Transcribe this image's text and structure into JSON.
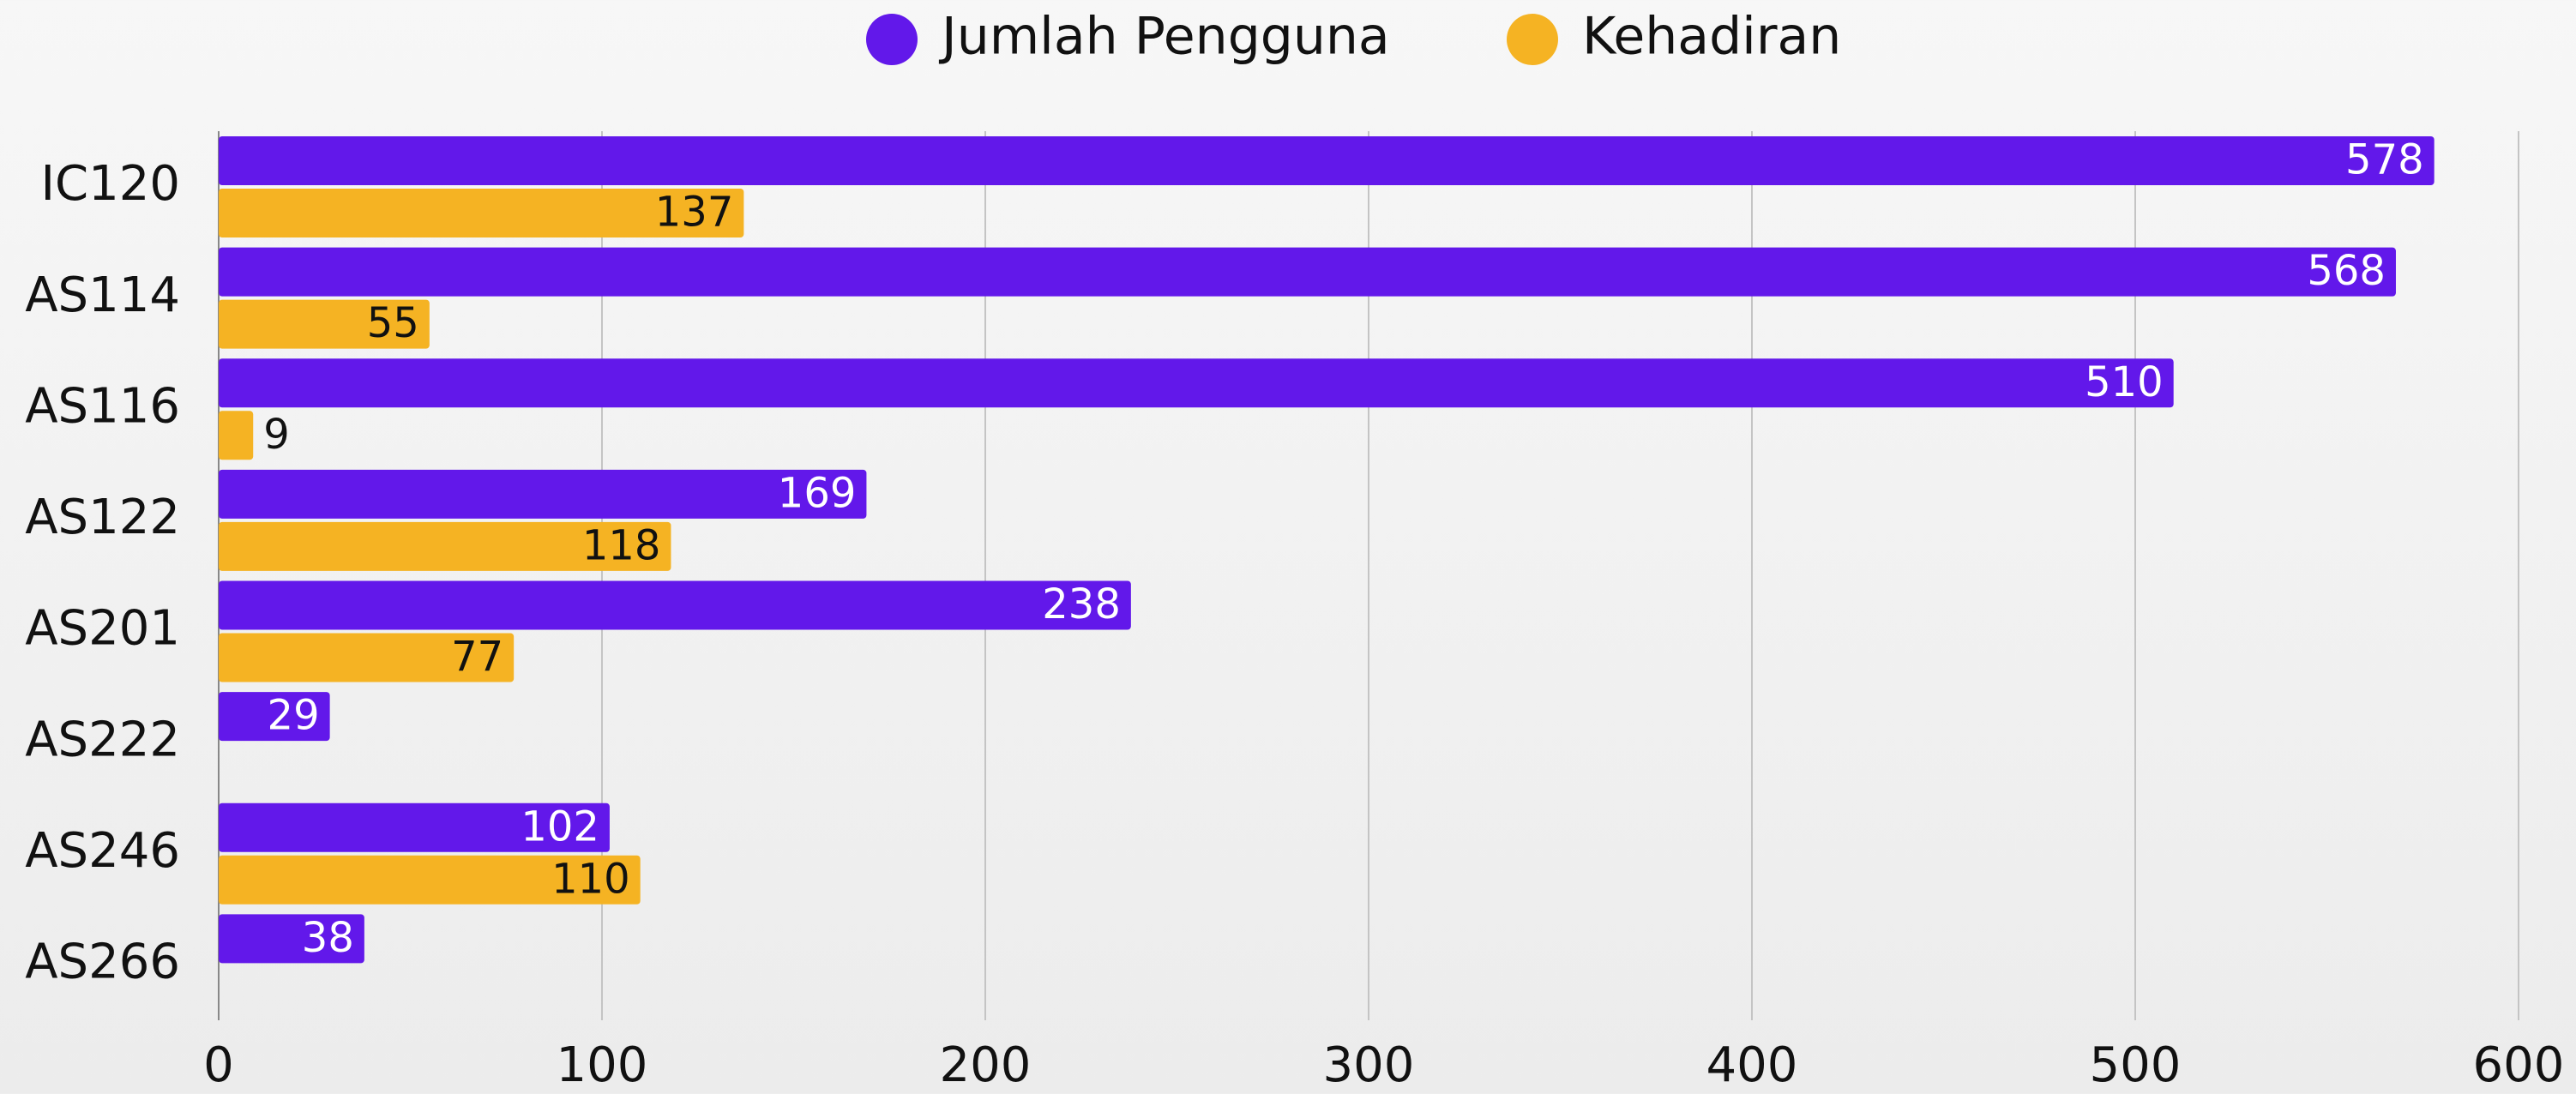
{
  "chart_data": {
    "type": "hbar",
    "categories": [
      "IC120",
      "AS114",
      "AS116",
      "AS122",
      "AS201",
      "AS222",
      "AS246",
      "AS266"
    ],
    "series": [
      {
        "name": "Jumlah Pengguna",
        "color": "#6218ea",
        "values": [
          578,
          568,
          510,
          169,
          238,
          29,
          102,
          38
        ]
      },
      {
        "name": "Kehadiran",
        "color": "#f5b323",
        "values": [
          137,
          55,
          9,
          118,
          77,
          null,
          110,
          null
        ]
      }
    ],
    "xlim": [
      0,
      600
    ],
    "xticks": [
      0,
      100,
      200,
      300,
      400,
      500,
      600
    ],
    "grid": true,
    "legend": "top"
  }
}
